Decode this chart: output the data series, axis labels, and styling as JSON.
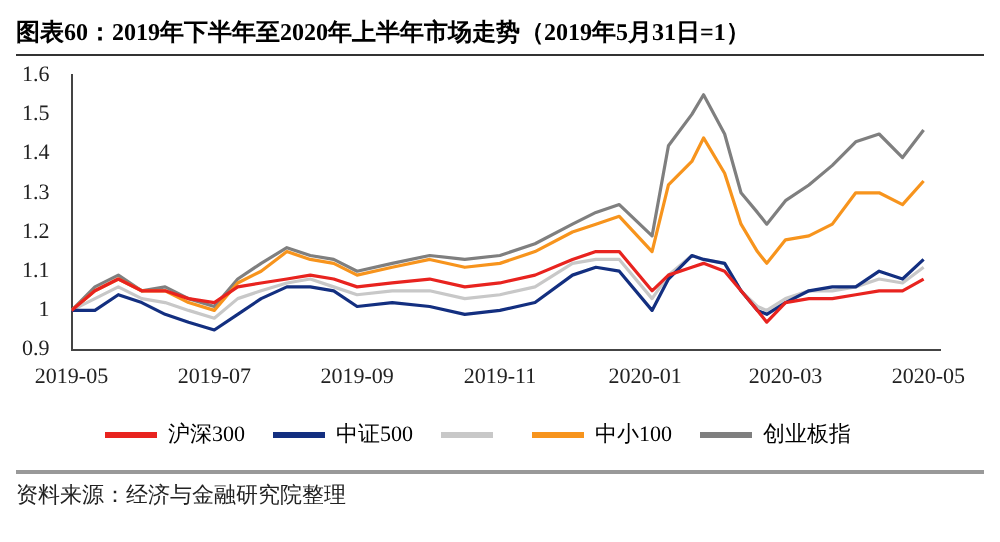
{
  "chart_data": {
    "type": "line",
    "title": "图表60：2019年下半年至2020年上半年市场走势（2019年5月31日=1）",
    "annotations": [
      "资料来源：经济与金融研究院整理"
    ],
    "x": [
      "2019-05-31",
      "2019-06-10",
      "2019-06-20",
      "2019-06-30",
      "2019-07-10",
      "2019-07-20",
      "2019-07-31",
      "2019-08-10",
      "2019-08-20",
      "2019-08-31",
      "2019-09-10",
      "2019-09-20",
      "2019-09-30",
      "2019-10-15",
      "2019-10-31",
      "2019-11-15",
      "2019-11-30",
      "2019-12-15",
      "2019-12-31",
      "2020-01-10",
      "2020-01-20",
      "2020-02-03",
      "2020-02-10",
      "2020-02-20",
      "2020-02-25",
      "2020-03-05",
      "2020-03-12",
      "2020-03-19",
      "2020-03-23",
      "2020-03-31",
      "2020-04-10",
      "2020-04-20",
      "2020-04-30",
      "2020-05-10",
      "2020-05-20",
      "2020-05-29"
    ],
    "xlim": [
      "2019-05-31",
      "2020-06-05"
    ],
    "xticks": [
      {
        "value": "2019-05-31",
        "label": "2019-05"
      },
      {
        "value": "2019-07-31",
        "label": "2019-07"
      },
      {
        "value": "2019-09-30",
        "label": "2019-09"
      },
      {
        "value": "2019-11-30",
        "label": "2019-11"
      },
      {
        "value": "2020-01-31",
        "label": "2020-01"
      },
      {
        "value": "2020-03-31",
        "label": "2020-03"
      },
      {
        "value": "2020-05-31",
        "label": "2020-05"
      }
    ],
    "ylim": [
      0.9,
      1.6
    ],
    "yticks": [
      0.9,
      1,
      1.1,
      1.2,
      1.3,
      1.4,
      1.5,
      1.6
    ],
    "grid": false,
    "legend": "bottom",
    "marker": "none",
    "line_style": "solid",
    "series": [
      {
        "name": "沪深300",
        "color": "#e8231f",
        "values": [
          1.0,
          1.05,
          1.08,
          1.05,
          1.05,
          1.03,
          1.02,
          1.06,
          1.07,
          1.08,
          1.09,
          1.08,
          1.06,
          1.07,
          1.08,
          1.06,
          1.07,
          1.09,
          1.13,
          1.15,
          1.15,
          1.05,
          1.09,
          1.11,
          1.12,
          1.1,
          1.05,
          1.0,
          0.97,
          1.02,
          1.03,
          1.03,
          1.04,
          1.05,
          1.05,
          1.08
        ]
      },
      {
        "name": "中证500",
        "color": "#132f80",
        "values": [
          1.0,
          1.0,
          1.04,
          1.02,
          0.99,
          0.97,
          0.95,
          0.99,
          1.03,
          1.06,
          1.06,
          1.05,
          1.01,
          1.02,
          1.01,
          0.99,
          1.0,
          1.02,
          1.09,
          1.11,
          1.1,
          1.0,
          1.08,
          1.14,
          1.13,
          1.12,
          1.05,
          1.0,
          0.99,
          1.02,
          1.05,
          1.06,
          1.06,
          1.1,
          1.08,
          1.13
        ]
      },
      {
        "color": "#c8c8c8",
        "values": [
          1.0,
          1.03,
          1.06,
          1.03,
          1.02,
          1.0,
          0.98,
          1.03,
          1.05,
          1.07,
          1.08,
          1.06,
          1.04,
          1.05,
          1.05,
          1.03,
          1.04,
          1.06,
          1.12,
          1.13,
          1.13,
          1.03,
          1.09,
          1.14,
          1.13,
          1.12,
          1.05,
          1.01,
          1.0,
          1.03,
          1.05,
          1.05,
          1.06,
          1.08,
          1.07,
          1.11
        ]
      },
      {
        "name": "中小100",
        "color": "#f7941d",
        "values": [
          1.0,
          1.05,
          1.08,
          1.05,
          1.05,
          1.02,
          1.0,
          1.07,
          1.1,
          1.15,
          1.13,
          1.12,
          1.09,
          1.11,
          1.13,
          1.11,
          1.12,
          1.15,
          1.2,
          1.22,
          1.24,
          1.15,
          1.32,
          1.38,
          1.44,
          1.35,
          1.22,
          1.15,
          1.12,
          1.18,
          1.19,
          1.22,
          1.3,
          1.3,
          1.27,
          1.33
        ]
      },
      {
        "name": "创业板指",
        "color": "#7f7f7f",
        "values": [
          1.0,
          1.06,
          1.09,
          1.05,
          1.06,
          1.03,
          1.01,
          1.08,
          1.12,
          1.16,
          1.14,
          1.13,
          1.1,
          1.12,
          1.14,
          1.13,
          1.14,
          1.17,
          1.22,
          1.25,
          1.27,
          1.19,
          1.42,
          1.5,
          1.55,
          1.45,
          1.3,
          1.25,
          1.22,
          1.28,
          1.32,
          1.37,
          1.43,
          1.45,
          1.39,
          1.46
        ]
      }
    ]
  }
}
